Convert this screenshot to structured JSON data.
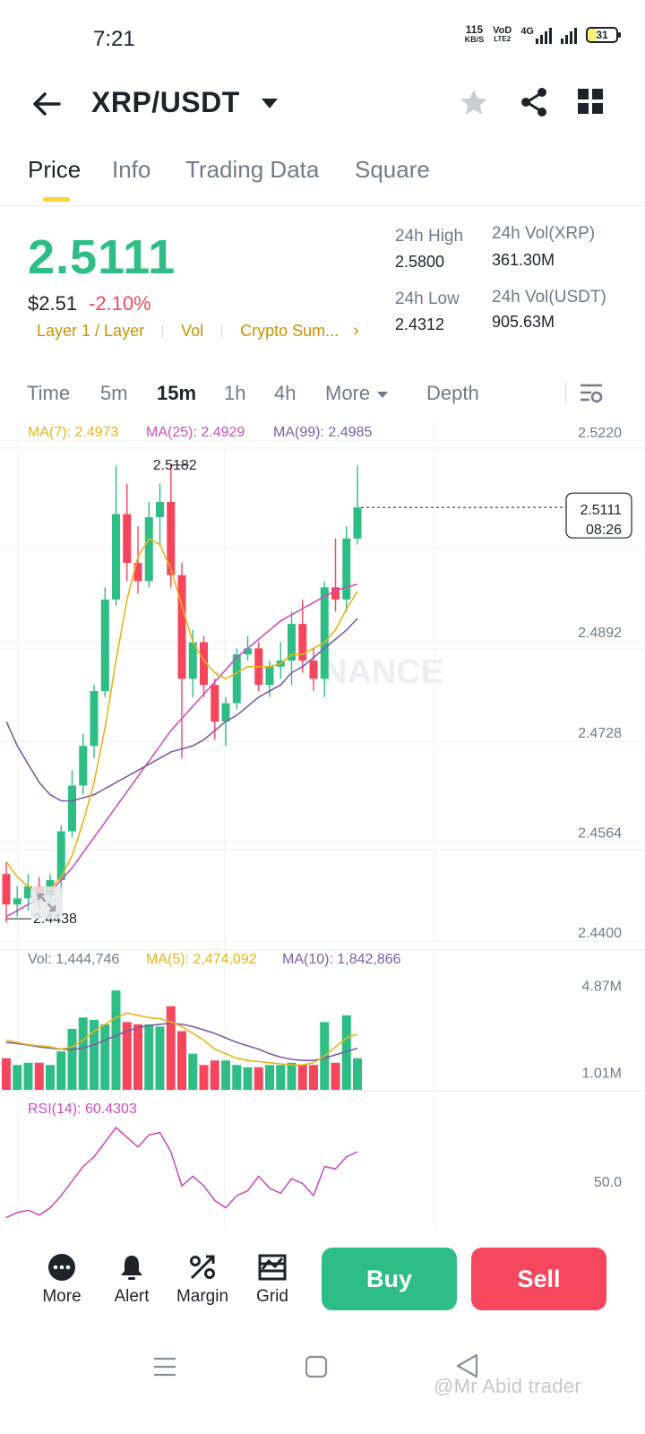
{
  "status_bar": {
    "time": "7:21",
    "net_speed_value": "115",
    "net_speed_unit": "KB/S",
    "volte_top": "VoD",
    "volte_bottom": "LTE2",
    "network": "4G",
    "battery": "31"
  },
  "header": {
    "pair": "XRP/USDT"
  },
  "tabs": [
    {
      "label": "Price"
    },
    {
      "label": "Info"
    },
    {
      "label": "Trading Data"
    },
    {
      "label": "Square"
    }
  ],
  "ticker": {
    "last_price": "2.5111",
    "usd_price": "$2.51",
    "change_pct": "-2.10%",
    "tags": [
      "Layer 1 / Layer",
      "Vol",
      "Crypto Sum..."
    ],
    "high_label": "24h High",
    "high_value": "2.5800",
    "low_label": "24h Low",
    "low_value": "2.4312",
    "vol_base_label": "24h Vol(XRP)",
    "vol_base_value": "361.30M",
    "vol_quote_label": "24h Vol(USDT)",
    "vol_quote_value": "905.63M"
  },
  "intervals": {
    "items": [
      "Time",
      "5m",
      "15m",
      "1h",
      "4h"
    ],
    "more_label": "More",
    "depth_label": "Depth",
    "active": "15m"
  },
  "chart_data": {
    "type": "candlestick",
    "ma_legend": [
      {
        "label": "MA(7): 2.4973",
        "color": "#e7b417"
      },
      {
        "label": "MA(25): 2.4929",
        "color": "#c94fbf"
      },
      {
        "label": "MA(99): 2.4985",
        "color": "#7b5ea7"
      }
    ],
    "y_axis_ticks": [
      "2.5220",
      "2.4892",
      "2.4728",
      "2.4564",
      "2.4400"
    ],
    "ylim": [
      2.44,
      2.522
    ],
    "high_marker": "2.5182",
    "low_marker": "2.4438",
    "current_price_label": "2.5111",
    "countdown": "08:26",
    "watermark_text": "NANCE",
    "candles": [
      {
        "o": 2.451,
        "h": 2.453,
        "l": 2.443,
        "c": 2.446
      },
      {
        "o": 2.446,
        "h": 2.449,
        "l": 2.444,
        "c": 2.447
      },
      {
        "o": 2.447,
        "h": 2.451,
        "l": 2.445,
        "c": 2.449
      },
      {
        "o": 2.449,
        "h": 2.4505,
        "l": 2.4455,
        "c": 2.4475
      },
      {
        "o": 2.4475,
        "h": 2.451,
        "l": 2.4465,
        "c": 2.45
      },
      {
        "o": 2.45,
        "h": 2.459,
        "l": 2.448,
        "c": 2.458
      },
      {
        "o": 2.458,
        "h": 2.468,
        "l": 2.457,
        "c": 2.4655
      },
      {
        "o": 2.4655,
        "h": 2.474,
        "l": 2.464,
        "c": 2.472
      },
      {
        "o": 2.472,
        "h": 2.482,
        "l": 2.47,
        "c": 2.481
      },
      {
        "o": 2.481,
        "h": 2.498,
        "l": 2.48,
        "c": 2.496
      },
      {
        "o": 2.496,
        "h": 2.518,
        "l": 2.495,
        "c": 2.51
      },
      {
        "o": 2.51,
        "h": 2.515,
        "l": 2.499,
        "c": 2.502
      },
      {
        "o": 2.502,
        "h": 2.508,
        "l": 2.497,
        "c": 2.499
      },
      {
        "o": 2.499,
        "h": 2.512,
        "l": 2.498,
        "c": 2.5095
      },
      {
        "o": 2.5095,
        "h": 2.515,
        "l": 2.505,
        "c": 2.512
      },
      {
        "o": 2.512,
        "h": 2.5182,
        "l": 2.498,
        "c": 2.5
      },
      {
        "o": 2.5,
        "h": 2.502,
        "l": 2.47,
        "c": 2.483
      },
      {
        "o": 2.483,
        "h": 2.491,
        "l": 2.48,
        "c": 2.489
      },
      {
        "o": 2.489,
        "h": 2.49,
        "l": 2.48,
        "c": 2.482
      },
      {
        "o": 2.482,
        "h": 2.483,
        "l": 2.473,
        "c": 2.476
      },
      {
        "o": 2.476,
        "h": 2.48,
        "l": 2.472,
        "c": 2.479
      },
      {
        "o": 2.479,
        "h": 2.488,
        "l": 2.478,
        "c": 2.487
      },
      {
        "o": 2.487,
        "h": 2.49,
        "l": 2.486,
        "c": 2.488
      },
      {
        "o": 2.488,
        "h": 2.489,
        "l": 2.481,
        "c": 2.482
      },
      {
        "o": 2.482,
        "h": 2.486,
        "l": 2.48,
        "c": 2.485
      },
      {
        "o": 2.485,
        "h": 2.489,
        "l": 2.483,
        "c": 2.486
      },
      {
        "o": 2.486,
        "h": 2.494,
        "l": 2.482,
        "c": 2.492
      },
      {
        "o": 2.492,
        "h": 2.496,
        "l": 2.484,
        "c": 2.486
      },
      {
        "o": 2.486,
        "h": 2.488,
        "l": 2.481,
        "c": 2.483
      },
      {
        "o": 2.483,
        "h": 2.499,
        "l": 2.48,
        "c": 2.498
      },
      {
        "o": 2.498,
        "h": 2.506,
        "l": 2.494,
        "c": 2.496
      },
      {
        "o": 2.496,
        "h": 2.508,
        "l": 2.494,
        "c": 2.506
      },
      {
        "o": 2.506,
        "h": 2.518,
        "l": 2.505,
        "c": 2.5111
      }
    ],
    "ma7": [
      2.453,
      2.4505,
      2.449,
      2.448,
      2.4485,
      2.4505,
      2.454,
      2.4595,
      2.466,
      2.475,
      2.486,
      2.496,
      2.503,
      2.506,
      2.505,
      2.501,
      2.495,
      2.489,
      2.486,
      2.484,
      2.483,
      2.484,
      2.485,
      2.485,
      2.485,
      2.4855,
      2.487,
      2.487,
      2.488,
      2.489,
      2.491,
      2.4945,
      2.4973
    ],
    "ma25": [
      2.476,
      2.472,
      2.469,
      2.466,
      2.464,
      2.463,
      2.463,
      2.4635,
      2.464,
      2.465,
      2.466,
      2.467,
      2.468,
      2.469,
      2.47,
      2.471,
      2.4715,
      2.472,
      2.473,
      2.4745,
      2.476,
      2.477,
      2.4785,
      2.48,
      2.481,
      2.482,
      2.484,
      2.485,
      2.4865,
      2.488,
      2.4895,
      2.491,
      2.4929
    ],
    "ma99": [
      2.444,
      2.445,
      2.446,
      2.447,
      2.448,
      2.45,
      2.452,
      2.4545,
      2.457,
      2.4595,
      2.462,
      2.4645,
      2.467,
      2.4695,
      2.472,
      2.4745,
      2.4765,
      2.4785,
      2.4805,
      2.4825,
      2.4845,
      2.4865,
      2.488,
      2.4895,
      2.491,
      2.4925,
      2.4935,
      2.4945,
      2.4955,
      2.4965,
      2.4975,
      2.498,
      2.4985
    ],
    "volume_panel": {
      "legend": [
        {
          "label": "Vol: 1,444,746",
          "color": "#707a8a"
        },
        {
          "label": "MA(5): 2,474,092",
          "color": "#e7b417"
        },
        {
          "label": "MA(10): 1,842,866",
          "color": "#7b5ea7"
        }
      ],
      "y_axis_ticks": [
        "4.87M",
        "1.01M"
      ],
      "ylim": [
        0,
        5.0
      ],
      "values": [
        1.4,
        1.1,
        1.2,
        1.2,
        1.1,
        1.7,
        2.7,
        3.2,
        3.1,
        2.9,
        4.4,
        3.0,
        2.9,
        2.9,
        2.8,
        3.7,
        2.6,
        1.6,
        1.1,
        1.3,
        1.3,
        1.1,
        1.0,
        1.0,
        1.1,
        1.1,
        1.2,
        1.1,
        1.1,
        3.0,
        1.2,
        3.3,
        1.4
      ],
      "ma5": [
        2.2,
        2.1,
        2.0,
        1.95,
        1.9,
        1.8,
        1.9,
        2.2,
        2.6,
        2.9,
        3.2,
        3.4,
        3.3,
        3.2,
        3.15,
        3.0,
        2.8,
        2.5,
        2.2,
        1.8,
        1.6,
        1.4,
        1.3,
        1.25,
        1.2,
        1.15,
        1.1,
        1.1,
        1.2,
        1.5,
        1.9,
        2.3,
        2.474
      ],
      "ma10": [
        2.1,
        2.05,
        1.98,
        1.9,
        1.85,
        1.8,
        1.78,
        1.85,
        2.0,
        2.2,
        2.4,
        2.6,
        2.75,
        2.85,
        2.9,
        2.95,
        2.9,
        2.8,
        2.65,
        2.5,
        2.3,
        2.1,
        1.95,
        1.8,
        1.6,
        1.45,
        1.35,
        1.3,
        1.3,
        1.4,
        1.55,
        1.7,
        1.843
      ]
    },
    "rsi_panel": {
      "legend": "RSI(14): 60.4303",
      "y_axis_tick": "50.0",
      "values": [
        35,
        37,
        38,
        36,
        39,
        44,
        50,
        56,
        60,
        66,
        72,
        68,
        64,
        69,
        70,
        62,
        48,
        52,
        48,
        42,
        39,
        44,
        46,
        52,
        47,
        45,
        51,
        49,
        44,
        56,
        55,
        60,
        62
      ]
    }
  },
  "action_bar": {
    "more_label": "More",
    "alert_label": "Alert",
    "margin_label": "Margin",
    "grid_label": "Grid",
    "buy_label": "Buy",
    "sell_label": "Sell"
  },
  "watermark": "@Mr Abid trader",
  "colors": {
    "up": "#2ebd85",
    "down": "#f6465d",
    "accent": "#fcd535",
    "tag": "#c99400"
  }
}
